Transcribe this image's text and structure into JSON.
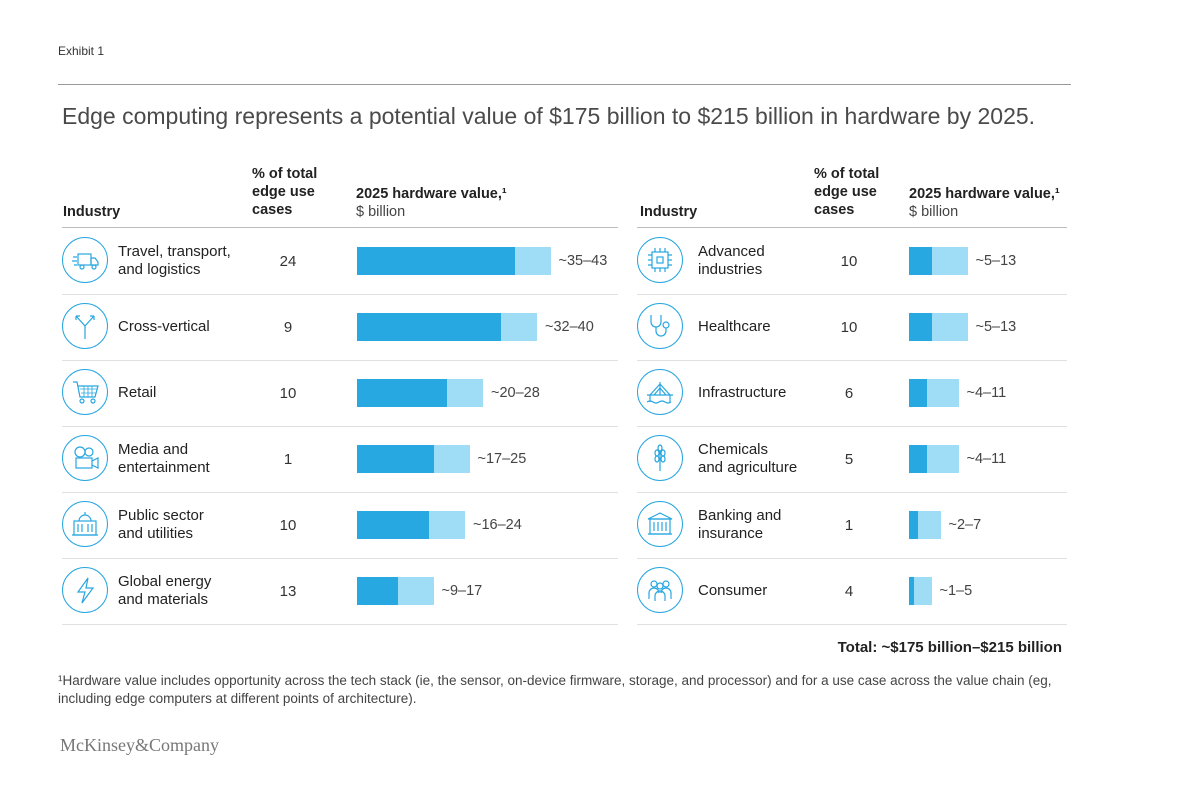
{
  "exhibit_label": "Exhibit 1",
  "title": "Edge computing represents a potential value of $175 billion to $215 billion in hardware by 2025.",
  "headers": {
    "industry": "Industry",
    "pct_line1": "% of total",
    "pct_line2": "edge use",
    "pct_line3": "cases",
    "value_main": "2025 hardware value,¹",
    "value_sub": "$ billion"
  },
  "colors": {
    "low": "#27a8e0",
    "high": "#9fdcf5",
    "icon": "#27a6e0"
  },
  "chart_data": {
    "type": "bar",
    "title": "Edge computing represents a potential value of $175 billion to $215 billion in hardware by 2025.",
    "ylabel": "2025 hardware value, $ billion",
    "categories": [
      "Travel, transport, and logistics",
      "Cross-vertical",
      "Retail",
      "Media and entertainment",
      "Public sector and utilities",
      "Global energy and materials",
      "Advanced industries",
      "Healthcare",
      "Infrastructure",
      "Chemicals and agriculture",
      "Banking and insurance",
      "Consumer"
    ],
    "series": [
      {
        "name": "low",
        "values": [
          35,
          32,
          20,
          17,
          16,
          9,
          5,
          5,
          4,
          4,
          2,
          1
        ]
      },
      {
        "name": "high",
        "values": [
          43,
          40,
          28,
          25,
          24,
          17,
          13,
          13,
          11,
          11,
          7,
          5
        ]
      }
    ]
  },
  "left_rows": [
    {
      "name": "Travel, transport,\nand logistics",
      "pct": "24",
      "label": "~35–43",
      "low": 35,
      "high": 43,
      "icon": "truck-icon"
    },
    {
      "name": "Cross-vertical",
      "pct": "9",
      "label": "~32–40",
      "low": 32,
      "high": 40,
      "icon": "branch-arrows-icon"
    },
    {
      "name": "Retail",
      "pct": "10",
      "label": "~20–28",
      "low": 20,
      "high": 28,
      "icon": "shopping-cart-icon"
    },
    {
      "name": "Media and\nentertainment",
      "pct": "1",
      "label": "~17–25",
      "low": 17,
      "high": 25,
      "icon": "movie-camera-icon"
    },
    {
      "name": "Public sector\nand utilities",
      "pct": "10",
      "label": "~16–24",
      "low": 16,
      "high": 24,
      "icon": "government-building-icon"
    },
    {
      "name": "Global energy\nand materials",
      "pct": "13",
      "label": "~9–17",
      "low": 9,
      "high": 17,
      "icon": "lightning-icon"
    }
  ],
  "right_rows": [
    {
      "name": "Advanced\nindustries",
      "pct": "10",
      "label": "~5–13",
      "low": 5,
      "high": 13,
      "icon": "microchip-icon"
    },
    {
      "name": "Healthcare",
      "pct": "10",
      "label": "~5–13",
      "low": 5,
      "high": 13,
      "icon": "stethoscope-icon"
    },
    {
      "name": "Infrastructure",
      "pct": "6",
      "label": "~4–11",
      "low": 4,
      "high": 11,
      "icon": "bridge-icon"
    },
    {
      "name": "Chemicals\nand agriculture",
      "pct": "5",
      "label": "~4–11",
      "low": 4,
      "high": 11,
      "icon": "wheat-icon"
    },
    {
      "name": "Banking and\ninsurance",
      "pct": "1",
      "label": "~2–7",
      "low": 2,
      "high": 7,
      "icon": "bank-icon"
    },
    {
      "name": "Consumer",
      "pct": "4",
      "label": "~1–5",
      "low": 1,
      "high": 5,
      "icon": "people-group-icon"
    }
  ],
  "total": "Total: ~$175 billion–$215 billion",
  "footnote": "¹Hardware value includes opportunity across the tech stack (ie, the sensor, on-device firmware, storage, and processor) and for a use case across the value chain (eg, including edge computers at different points of architecture).",
  "logo": "McKinsey&Company"
}
